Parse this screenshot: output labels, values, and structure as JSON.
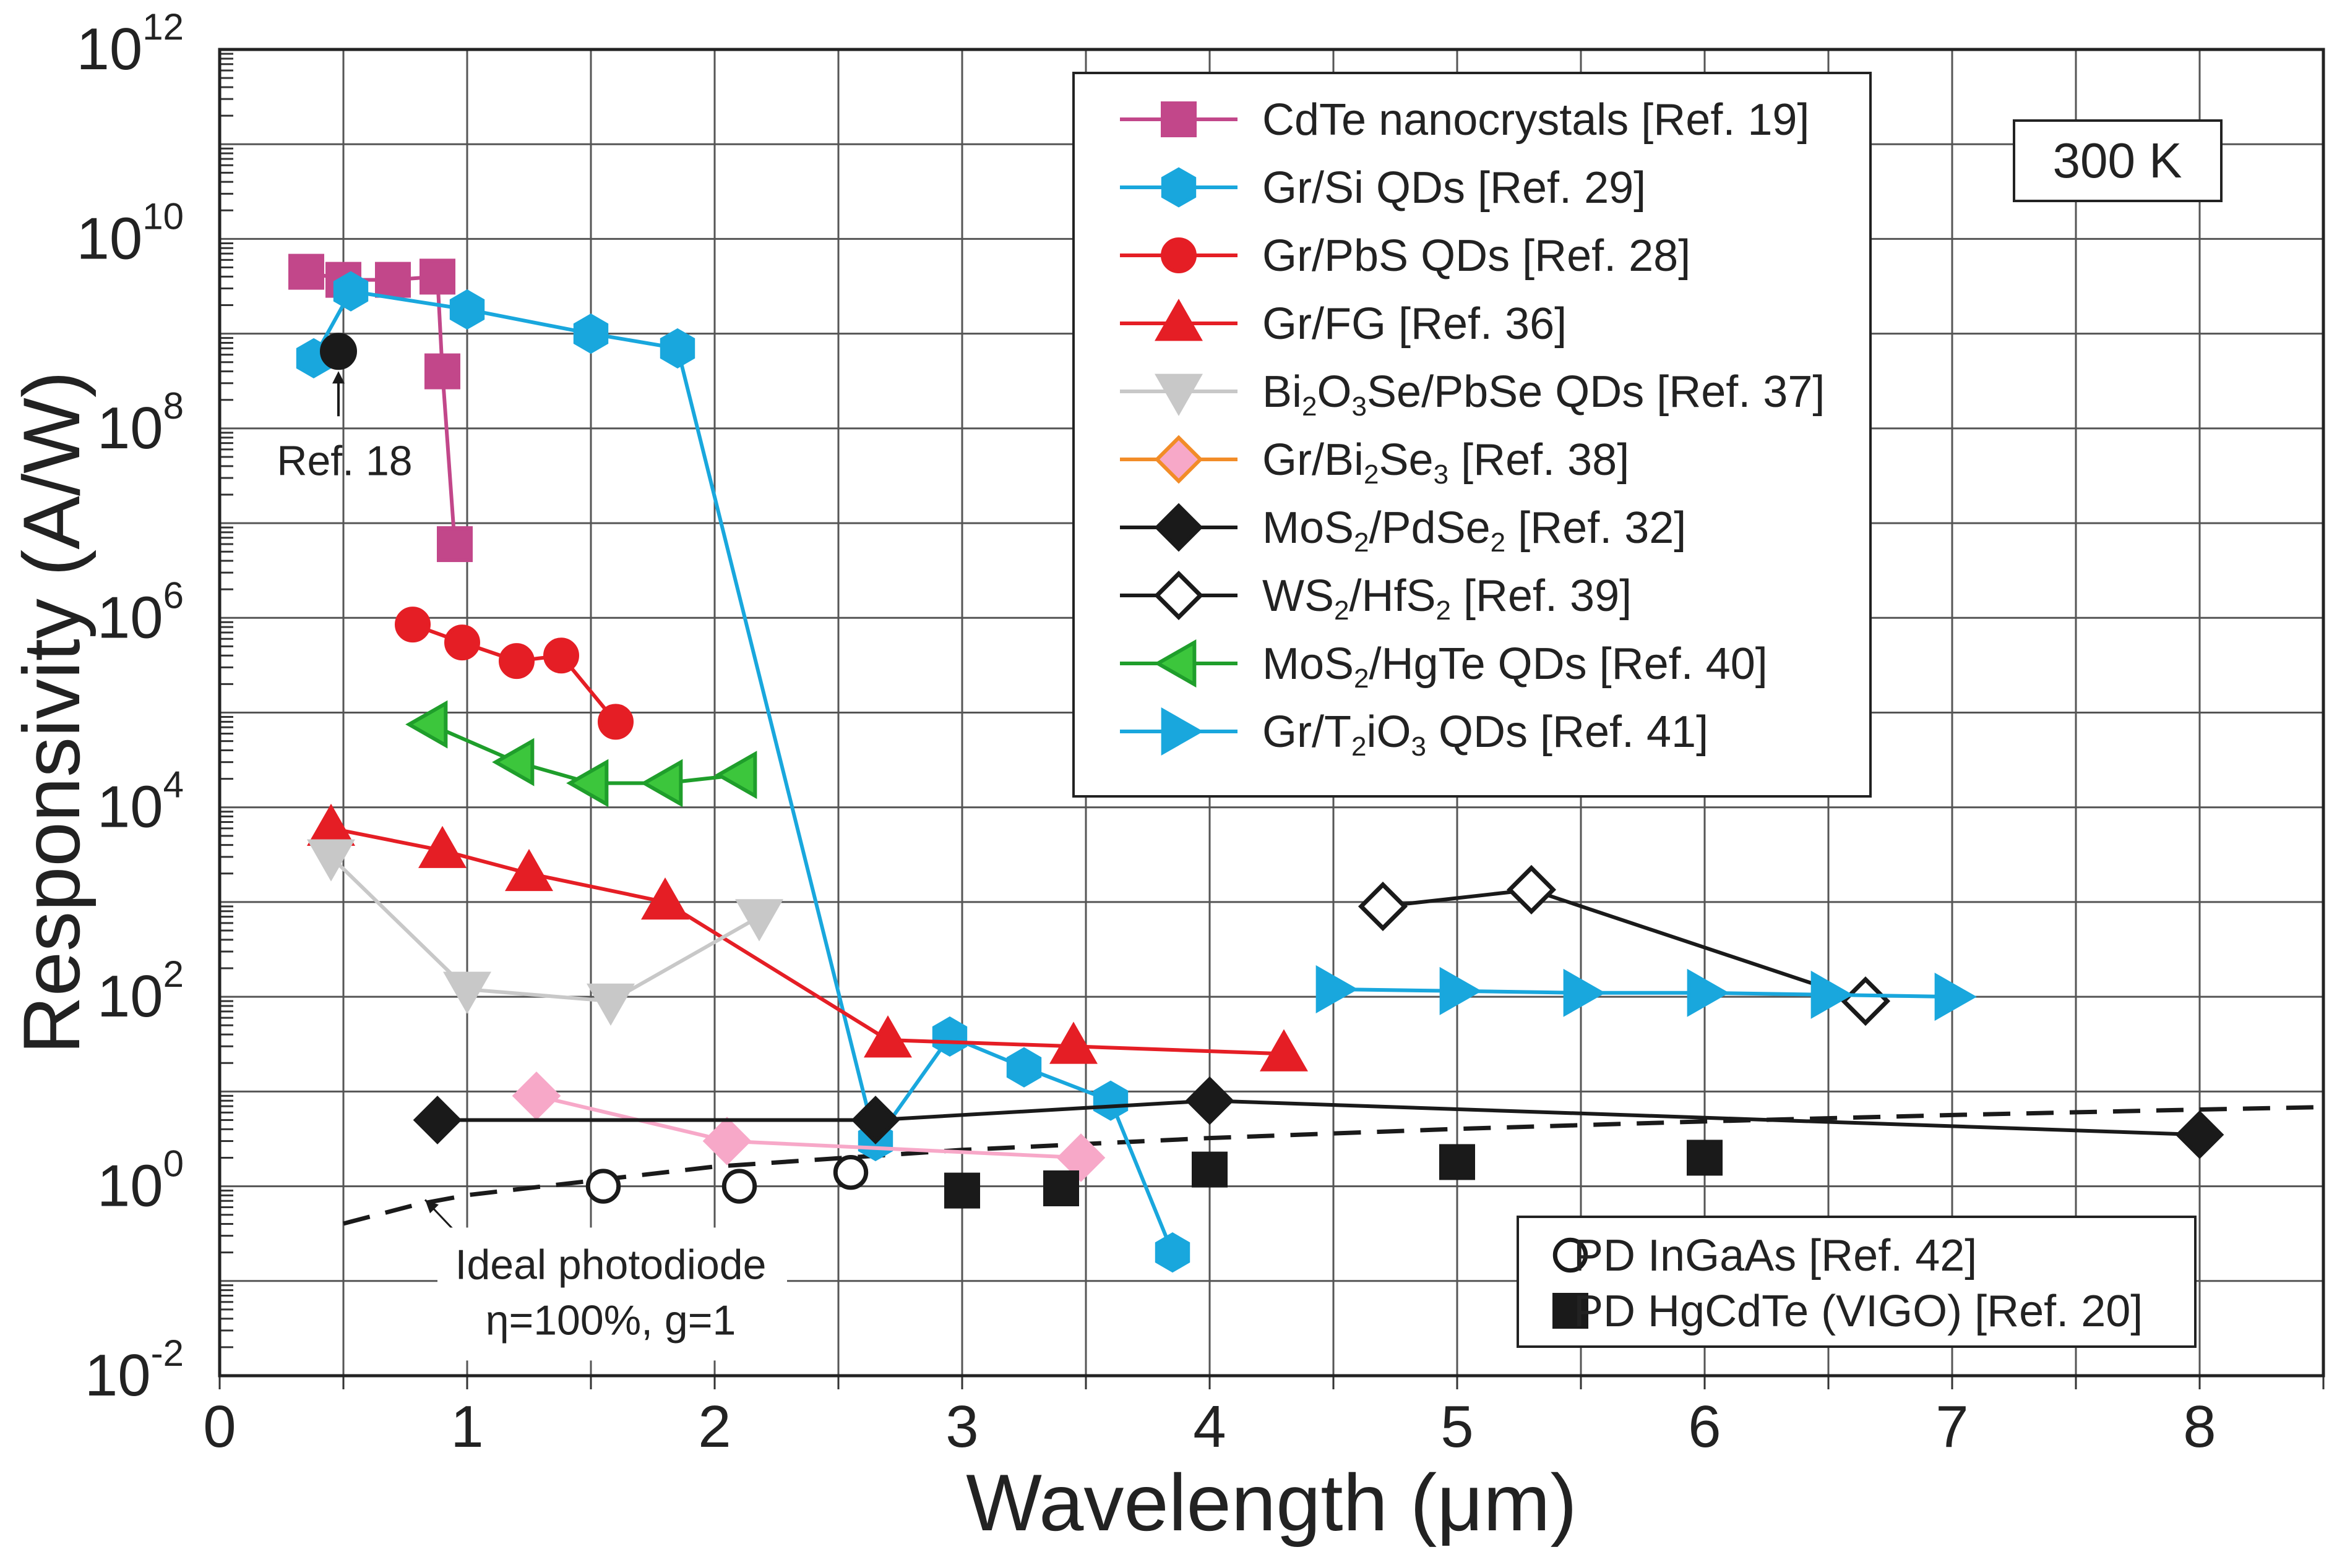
{
  "chart_data": {
    "type": "line",
    "title": "",
    "xlabel": "Wavelength (μm)",
    "ylabel": "Responsivity (A/W)",
    "yscale": "log",
    "xlim": [
      0,
      8.5
    ],
    "ylim_exponent": [
      -2,
      12
    ],
    "x_ticks": [
      "0",
      "1",
      "2",
      "3",
      "4",
      "5",
      "6",
      "7",
      "8"
    ],
    "y_tick_exponents": [
      "-2",
      "0",
      "2",
      "4",
      "6",
      "8",
      "10",
      "12"
    ],
    "y_tick_base": "10",
    "temperature_label": "300 K",
    "series": [
      {
        "name": "CdTe nanocrystals [Ref. 19]",
        "name_parts": [
          {
            "t": "CdTe nanocrystals [Ref. 19]"
          }
        ],
        "marker": "square",
        "color": "#c2478a",
        "fill": "#c2478a",
        "x": [
          0.35,
          0.5,
          0.7,
          0.88,
          0.9,
          0.95
        ],
        "y": [
          4500000000.0,
          3700000000.0,
          3700000000.0,
          4000000000.0,
          400000000.0,
          6000000.0
        ]
      },
      {
        "name": "Gr/Si QDs [Ref. 29]",
        "name_parts": [
          {
            "t": "Gr/Si QDs [Ref. 29]"
          }
        ],
        "marker": "hexagon",
        "color": "#19a7dd",
        "fill": "#19a7dd",
        "x": [
          0.38,
          0.53,
          1.0,
          1.5,
          1.85,
          2.65,
          2.95,
          3.25,
          3.6,
          3.85
        ],
        "y": [
          550000000.0,
          2800000000.0,
          1800000000.0,
          1000000000.0,
          700000000.0,
          3.0,
          38,
          18,
          8,
          0.2
        ]
      },
      {
        "name": "Gr/PbS QDs [Ref. 28]",
        "name_parts": [
          {
            "t": "Gr/PbS QDs [Ref. 28]"
          }
        ],
        "marker": "circle",
        "color": "#e51e25",
        "fill": "#e51e25",
        "x": [
          0.78,
          0.98,
          1.2,
          1.38,
          1.6
        ],
        "y": [
          850000.0,
          550000.0,
          350000.0,
          400000.0,
          80000.0
        ]
      },
      {
        "name": "Gr/FG [Ref. 36]",
        "name_parts": [
          {
            "t": "Gr/FG [Ref. 36]"
          }
        ],
        "marker": "triangle-up",
        "color": "#e51e25",
        "fill": "#e51e25",
        "x": [
          0.45,
          0.9,
          1.25,
          1.8,
          2.7,
          3.45,
          4.3
        ],
        "y": [
          6000,
          3500,
          2000,
          1000,
          35,
          30,
          25
        ]
      },
      {
        "name": "Bi2O3Se/PbSe QDs [Ref. 37]",
        "name_parts": [
          {
            "t": "Bi"
          },
          {
            "t": "2",
            "sub": true
          },
          {
            "t": "O"
          },
          {
            "t": "3",
            "sub": true
          },
          {
            "t": "Se/PbSe QDs [Ref. 37]"
          }
        ],
        "marker": "triangle-down",
        "color": "#c8c8c8",
        "fill": "#c8c8c8",
        "x": [
          0.45,
          1.0,
          1.58,
          2.18
        ],
        "y": [
          3000,
          120,
          90,
          700
        ]
      },
      {
        "name": "Gr/Bi2Se3 [Ref. 38]",
        "name_parts": [
          {
            "t": "Gr/Bi"
          },
          {
            "t": "2",
            "sub": true
          },
          {
            "t": "Se"
          },
          {
            "t": "3",
            "sub": true
          },
          {
            "t": " [Ref. 38]"
          }
        ],
        "marker": "diamond",
        "color": "#f7a8c8",
        "fill": "#f7a8c8",
        "legend_edge": "#f28c28",
        "x": [
          1.28,
          2.05,
          3.48
        ],
        "y": [
          9,
          3,
          2
        ]
      },
      {
        "name": "MoS2/PdSe2 [Ref. 32]",
        "name_parts": [
          {
            "t": "MoS"
          },
          {
            "t": "2",
            "sub": true
          },
          {
            "t": "/PdSe"
          },
          {
            "t": "2",
            "sub": true
          },
          {
            "t": " [Ref. 32]"
          }
        ],
        "marker": "diamond",
        "color": "#1a1a1a",
        "fill": "#1a1a1a",
        "x": [
          0.88,
          2.65,
          4.0,
          8.0
        ],
        "y": [
          5,
          5,
          8,
          3.5
        ]
      },
      {
        "name": "WS2/HfS2 [Ref. 39]",
        "name_parts": [
          {
            "t": "WS"
          },
          {
            "t": "2",
            "sub": true
          },
          {
            "t": "/HfS"
          },
          {
            "t": "2",
            "sub": true
          },
          {
            "t": " [Ref. 39]"
          }
        ],
        "marker": "diamond-open",
        "color": "#1a1a1a",
        "fill": "#ffffff",
        "x": [
          4.7,
          5.3,
          6.65
        ],
        "y": [
          900,
          1350,
          90
        ]
      },
      {
        "name": "MoS2/HgTe QDs [Ref. 40]",
        "name_parts": [
          {
            "t": "MoS"
          },
          {
            "t": "2",
            "sub": true
          },
          {
            "t": "/HgTe QDs [Ref. 40]"
          }
        ],
        "marker": "triangle-left",
        "color": "#1f9e2b",
        "fill": "#3cc63c",
        "x": [
          0.85,
          1.2,
          1.5,
          1.8,
          2.1
        ],
        "y": [
          75000,
          30000,
          18000,
          18000,
          22000
        ]
      },
      {
        "name": "Gr/T2iO3 QDs [Ref. 41]",
        "name_parts": [
          {
            "t": "Gr/T"
          },
          {
            "t": "2",
            "sub": true
          },
          {
            "t": "iO"
          },
          {
            "t": "3",
            "sub": true
          },
          {
            "t": " QDs [Ref. 41]"
          }
        ],
        "marker": "triangle-right",
        "color": "#19a7dd",
        "fill": "#19a7dd",
        "x": [
          4.5,
          5.0,
          5.5,
          6.0,
          6.5,
          7.0
        ],
        "y": [
          120,
          115,
          110,
          110,
          105,
          100
        ]
      },
      {
        "name": "PD InGaAs [Ref. 42]",
        "name_parts": [
          {
            "t": "PD InGaAs [Ref. 42]"
          }
        ],
        "marker": "circle-open",
        "color": "#1a1a1a",
        "fill": "#ffffff",
        "line": false,
        "x": [
          1.55,
          2.1,
          2.55
        ],
        "y": [
          1.0,
          1.0,
          1.4
        ]
      },
      {
        "name": "PD HgCdTe (VIGO) [Ref. 20]",
        "name_parts": [
          {
            "t": "PD HgCdTe (VIGO) [Ref. 20]"
          }
        ],
        "marker": "square",
        "color": "#1a1a1a",
        "fill": "#1a1a1a",
        "line": false,
        "x": [
          3.0,
          3.4,
          4.0,
          5.0,
          6.0
        ],
        "y": [
          0.9,
          0.95,
          1.5,
          1.8,
          2.0
        ]
      }
    ],
    "extra_points": [
      {
        "label": "Ref. 18",
        "marker": "circle",
        "color": "#1a1a1a",
        "x": 0.48,
        "y": 650000000.0
      }
    ],
    "ideal_curve": {
      "name": "Ideal photodiode",
      "label_line1": "Ideal photodiode",
      "label_line2": "η=100%, g=1",
      "x": [
        0.5,
        0.8,
        1.0,
        2.0,
        3.0,
        4.0,
        5.0,
        6.0,
        7.0,
        8.0,
        8.5
      ],
      "y": [
        0.4032,
        0.6452,
        0.8065,
        1.613,
        2.419,
        3.226,
        4.032,
        4.839,
        5.645,
        6.452,
        6.855
      ]
    },
    "legend_placement": "top-right",
    "legend_bottom_placement": "bottom-right"
  }
}
